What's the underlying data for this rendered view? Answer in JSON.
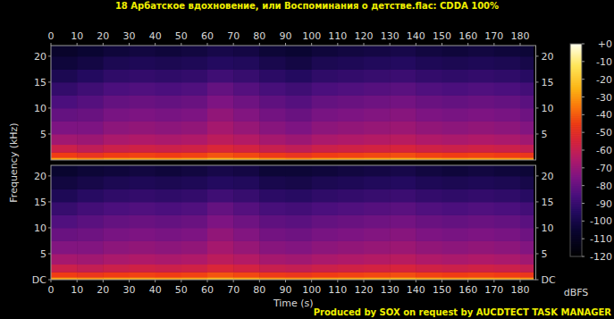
{
  "chart_data": {
    "type": "heatmap",
    "title": "18 Арбатское вдохновение, или Воспоминания о детстве.flac: CDDA 100%",
    "x_label": "Time (s)",
    "y_label": "Frequency (kHz)",
    "footer": "Produced by SOX on request by AUCDTECT TASK MANAGER",
    "xlim": [
      0,
      186
    ],
    "xticks": [
      0,
      10,
      20,
      30,
      40,
      50,
      60,
      70,
      80,
      90,
      100,
      110,
      120,
      130,
      140,
      150,
      160,
      170,
      180
    ],
    "ylim": [
      0,
      22.05
    ],
    "time_bins": [
      0,
      10,
      20,
      30,
      40,
      50,
      60,
      70,
      80,
      90,
      100,
      110,
      120,
      130,
      140,
      150,
      160,
      170,
      180,
      185
    ],
    "freq_bins": [
      0,
      0.5,
      1.5,
      3,
      5,
      7.5,
      10,
      12.5,
      15,
      17.5,
      20,
      22.05
    ],
    "grid": false,
    "channels": [
      {
        "yticks": [
          5,
          10,
          15,
          20
        ],
        "cells": [
          [
            -28,
            -31,
            -28,
            -27,
            -28,
            -27,
            -24,
            -26,
            -29,
            -31,
            -28,
            -27,
            -26,
            -25,
            -27,
            -28,
            -27,
            -28,
            -30
          ],
          [
            -45,
            -48,
            -45,
            -44,
            -45,
            -44,
            -41,
            -43,
            -46,
            -48,
            -45,
            -44,
            -43,
            -42,
            -44,
            -45,
            -44,
            -45,
            -47
          ],
          [
            -58,
            -61,
            -58,
            -57,
            -58,
            -57,
            -54,
            -56,
            -59,
            -61,
            -58,
            -57,
            -56,
            -55,
            -57,
            -58,
            -57,
            -58,
            -60
          ],
          [
            -68,
            -69,
            -66,
            -65,
            -66,
            -65,
            -62,
            -64,
            -67,
            -69,
            -66,
            -65,
            -64,
            -63,
            -65,
            -66,
            -65,
            -66,
            -68
          ],
          [
            -75,
            -75,
            -72,
            -71,
            -72,
            -71,
            -67,
            -70,
            -73,
            -75,
            -72,
            -71,
            -70,
            -69,
            -71,
            -72,
            -71,
            -72,
            -74
          ],
          [
            -80,
            -79,
            -76,
            -75,
            -76,
            -75,
            -71,
            -74,
            -77,
            -79,
            -76,
            -75,
            -74,
            -73,
            -75,
            -76,
            -75,
            -76,
            -78
          ],
          [
            -85,
            -83,
            -80,
            -79,
            -80,
            -79,
            -75,
            -78,
            -81,
            -83,
            -80,
            -79,
            -78,
            -77,
            -79,
            -80,
            -79,
            -80,
            -82
          ],
          [
            -91,
            -88,
            -85,
            -84,
            -85,
            -84,
            -80,
            -83,
            -86,
            -88,
            -85,
            -84,
            -83,
            -82,
            -84,
            -85,
            -84,
            -85,
            -87
          ],
          [
            -98,
            -95,
            -92,
            -91,
            -92,
            -91,
            -88,
            -90,
            -93,
            -95,
            -92,
            -91,
            -90,
            -89,
            -91,
            -92,
            -91,
            -92,
            -94
          ],
          [
            -103,
            -101,
            -98,
            -97,
            -98,
            -97,
            -95,
            -96,
            -99,
            -101,
            -98,
            -97,
            -96,
            -95,
            -97,
            -98,
            -97,
            -98,
            -100
          ],
          [
            -107,
            -105,
            -103,
            -102,
            -103,
            -102,
            -100,
            -101,
            -104,
            -105,
            -103,
            -102,
            -101,
            -100,
            -102,
            -103,
            -102,
            -103,
            -104
          ]
        ]
      },
      {
        "yticks": [
          {
            "value": 0,
            "label": "DC"
          },
          5,
          10,
          15,
          20
        ],
        "cells": [
          [
            -28,
            -30,
            -28,
            -27,
            -28,
            -27,
            -24,
            -26,
            -29,
            -30,
            -28,
            -27,
            -26,
            -25,
            -27,
            -28,
            -27,
            -28,
            -30
          ],
          [
            -45,
            -47,
            -45,
            -44,
            -45,
            -44,
            -41,
            -43,
            -46,
            -47,
            -45,
            -44,
            -43,
            -42,
            -44,
            -45,
            -44,
            -45,
            -47
          ],
          [
            -58,
            -60,
            -58,
            -57,
            -58,
            -57,
            -54,
            -56,
            -59,
            -60,
            -58,
            -57,
            -56,
            -55,
            -57,
            -58,
            -57,
            -58,
            -60
          ],
          [
            -67,
            -68,
            -66,
            -65,
            -66,
            -65,
            -62,
            -64,
            -67,
            -68,
            -66,
            -65,
            -64,
            -63,
            -65,
            -66,
            -65,
            -66,
            -68
          ],
          [
            -74,
            -74,
            -72,
            -71,
            -72,
            -71,
            -67,
            -70,
            -73,
            -74,
            -72,
            -71,
            -70,
            -69,
            -71,
            -72,
            -71,
            -72,
            -74
          ],
          [
            -79,
            -78,
            -76,
            -75,
            -76,
            -75,
            -71,
            -74,
            -77,
            -78,
            -76,
            -75,
            -74,
            -73,
            -75,
            -76,
            -75,
            -76,
            -78
          ],
          [
            -84,
            -82,
            -80,
            -79,
            -80,
            -79,
            -75,
            -78,
            -81,
            -82,
            -80,
            -79,
            -78,
            -77,
            -79,
            -80,
            -79,
            -80,
            -82
          ],
          [
            -90,
            -87,
            -85,
            -84,
            -85,
            -84,
            -80,
            -83,
            -86,
            -87,
            -85,
            -84,
            -83,
            -82,
            -84,
            -85,
            -84,
            -85,
            -87
          ],
          [
            -97,
            -94,
            -92,
            -91,
            -92,
            -91,
            -88,
            -90,
            -93,
            -94,
            -92,
            -91,
            -90,
            -89,
            -91,
            -92,
            -91,
            -92,
            -94
          ],
          [
            -102,
            -100,
            -98,
            -97,
            -98,
            -97,
            -95,
            -96,
            -99,
            -100,
            -98,
            -97,
            -96,
            -95,
            -97,
            -98,
            -97,
            -98,
            -100
          ],
          [
            -106,
            -104,
            -103,
            -102,
            -103,
            -102,
            -100,
            -101,
            -104,
            -104,
            -103,
            -102,
            -101,
            -100,
            -102,
            -103,
            -102,
            -103,
            -104
          ]
        ]
      }
    ],
    "colorbar": {
      "label": "dBFS",
      "range": [
        -120,
        0
      ],
      "ticks": [
        {
          "value": 0,
          "label": "+0"
        },
        -10,
        -20,
        -30,
        -40,
        -50,
        -60,
        -70,
        -80,
        -90,
        -100,
        -110,
        -120
      ]
    }
  }
}
